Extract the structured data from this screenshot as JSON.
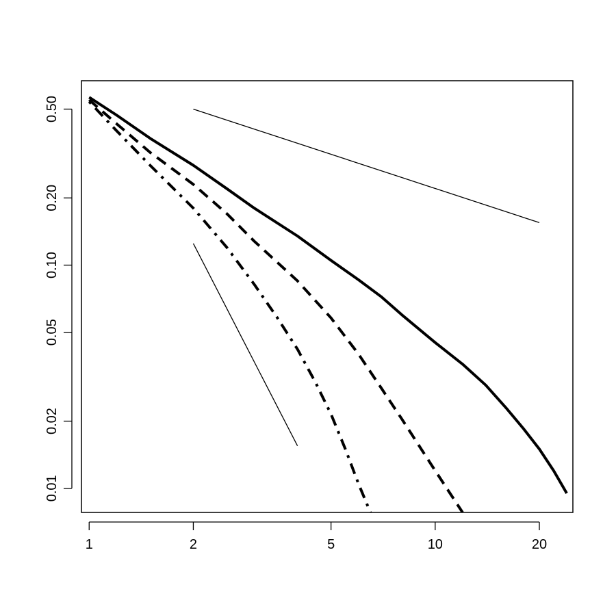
{
  "chart_data": {
    "type": "line",
    "title": "",
    "xlabel": "",
    "ylabel": "",
    "x_scale": "log",
    "y_scale": "log",
    "xlim": [
      0.95,
      25
    ],
    "ylim": [
      0.0078,
      0.67
    ],
    "grid": false,
    "x_ticks": [
      1,
      2,
      5,
      10,
      20
    ],
    "x_tick_labels": [
      "1",
      "2",
      "5",
      "10",
      "20"
    ],
    "y_ticks": [
      0.01,
      0.02,
      0.05,
      0.1,
      0.2,
      0.5
    ],
    "y_tick_labels": [
      "0.01",
      "0.02",
      "0.05",
      "0.10",
      "0.20",
      "0.50"
    ],
    "series": [
      {
        "style": "solid-thick",
        "x": [
          1,
          1.2,
          1.5,
          2,
          2.5,
          3,
          4,
          5,
          6,
          7,
          8,
          10,
          12,
          14,
          16,
          18,
          20,
          22,
          24
        ],
        "y": [
          0.565,
          0.47,
          0.37,
          0.28,
          0.22,
          0.18,
          0.135,
          0.105,
          0.086,
          0.072,
          0.06,
          0.045,
          0.036,
          0.029,
          0.023,
          0.0185,
          0.015,
          0.012,
          0.0095
        ]
      },
      {
        "style": "dashed-thick",
        "x": [
          1,
          1.2,
          1.5,
          2,
          2.5,
          3,
          4,
          5,
          6,
          7,
          8,
          10,
          12
        ],
        "y": [
          0.55,
          0.43,
          0.32,
          0.23,
          0.17,
          0.128,
          0.085,
          0.058,
          0.04,
          0.028,
          0.0205,
          0.012,
          0.0078
        ]
      },
      {
        "style": "dashdot-thick",
        "x": [
          1,
          1.2,
          1.5,
          2,
          2.5,
          3,
          3.5,
          4,
          4.5,
          5,
          5.5,
          6,
          6.5
        ],
        "y": [
          0.54,
          0.4,
          0.28,
          0.18,
          0.12,
          0.082,
          0.058,
          0.042,
          0.03,
          0.0215,
          0.015,
          0.0105,
          0.0078
        ]
      },
      {
        "style": "reference-thin",
        "x": [
          2,
          20
        ],
        "y": [
          0.5,
          0.155
        ]
      },
      {
        "style": "reference-thin",
        "x": [
          2,
          4
        ],
        "y": [
          0.125,
          0.0155
        ]
      }
    ]
  }
}
